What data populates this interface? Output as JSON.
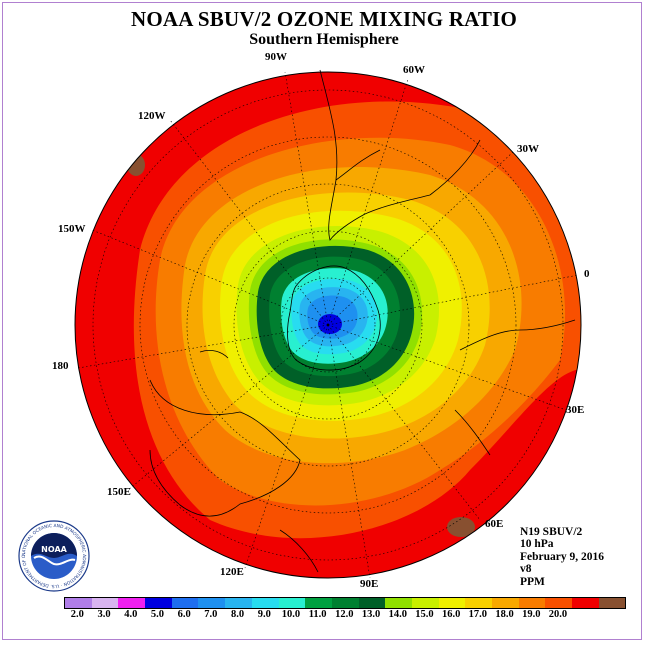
{
  "title": "NOAA SBUV/2 OZONE MIXING RATIO",
  "subtitle": "Southern Hemisphere",
  "longitude_labels": {
    "w90": "90W",
    "w60": "60W",
    "w30": "30W",
    "e0": "0",
    "e30": "30E",
    "e60": "60E",
    "e90": "90E",
    "e120": "120E",
    "e150": "150E",
    "e180": "180",
    "w150": "150W",
    "w120": "120W"
  },
  "info": {
    "satellite": "N19 SBUV/2",
    "pressure": "10 hPa",
    "date": "February 9, 2016",
    "version": "v8",
    "units": "PPM"
  },
  "logo": {
    "text": "NOAA",
    "ring_text": "NATIONAL OCEANIC AND ATMOSPHERIC ADMINISTRATION · U.S. DEPARTMENT OF COMMERCE"
  },
  "colorbar": {
    "colors": [
      "#b07ee8",
      "#d8b4f0",
      "#f020f0",
      "#0000e0",
      "#1e6ef0",
      "#1e90f0",
      "#28b4f0",
      "#28dcf0",
      "#28f0d0",
      "#00a040",
      "#008030",
      "#006028",
      "#90e000",
      "#c8f000",
      "#f0f000",
      "#f8d000",
      "#f8a800",
      "#f87c00",
      "#f85000",
      "#f00000",
      "#885030"
    ],
    "ticks": [
      "2.0",
      "3.0",
      "4.0",
      "5.0",
      "6.0",
      "7.0",
      "8.0",
      "9.0",
      "10.0",
      "11.0",
      "12.0",
      "13.0",
      "14.0",
      "15.0",
      "16.0",
      "17.0",
      "18.0",
      "19.0",
      "20.0"
    ]
  },
  "map_contours": {
    "units": "PPM",
    "levels_outer_to_inner": [
      18.0,
      17.0,
      16.0,
      15.0,
      14.0,
      13.0,
      12.0,
      11.0,
      10.0,
      9.0,
      8.0,
      7.0,
      6.0
    ],
    "colors_outer_to_inner": [
      "#f00000",
      "#f85000",
      "#f87c00",
      "#f8a800",
      "#f8d000",
      "#f0f000",
      "#c8f000",
      "#90e000",
      "#006028",
      "#008030",
      "#28f0d0",
      "#28b4f0",
      "#1e6ef0",
      "#0000e0"
    ]
  }
}
